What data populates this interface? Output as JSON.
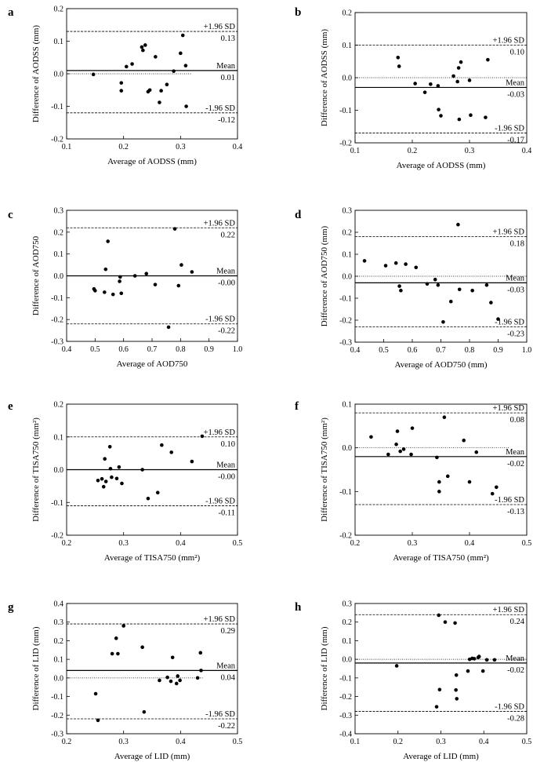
{
  "chart_data": [
    {
      "panel": "a",
      "type": "scatter",
      "xlabel": "Average of AODSS (mm)",
      "ylabel": "Difference of AODSS (mm)",
      "xlim": [
        0.1,
        0.4
      ],
      "ylim": [
        -0.2,
        0.2
      ],
      "xticks": [
        0.1,
        0.2,
        0.3,
        0.4
      ],
      "yticks": [
        -0.2,
        -0.1,
        0.0,
        0.1,
        0.2
      ],
      "xtick_labels": [
        "0.1",
        "0.2",
        "0.3",
        "0.4"
      ],
      "ytick_labels": [
        "-0.2",
        "-0.1",
        "0.0",
        "0.1",
        "0.2"
      ],
      "upper": {
        "value": 0.13,
        "label": "+1.96 SD",
        "value_label": "0.13"
      },
      "mean": {
        "value": 0.01,
        "label": "Mean",
        "value_label": "0.01"
      },
      "lower": {
        "value": -0.12,
        "label": "-1.96 SD",
        "value_label": "-0.12"
      },
      "zero_line_end": 0.32,
      "points": [
        [
          0.147,
          -0.002
        ],
        [
          0.196,
          -0.028
        ],
        [
          0.196,
          -0.052
        ],
        [
          0.205,
          0.022
        ],
        [
          0.215,
          0.03
        ],
        [
          0.232,
          0.082
        ],
        [
          0.234,
          0.072
        ],
        [
          0.238,
          0.088
        ],
        [
          0.243,
          -0.055
        ],
        [
          0.246,
          -0.05
        ],
        [
          0.256,
          0.052
        ],
        [
          0.263,
          -0.088
        ],
        [
          0.266,
          -0.052
        ],
        [
          0.276,
          -0.033
        ],
        [
          0.288,
          0.008
        ],
        [
          0.3,
          0.063
        ],
        [
          0.304,
          0.118
        ],
        [
          0.309,
          0.025
        ],
        [
          0.31,
          -0.1
        ]
      ]
    },
    {
      "panel": "b",
      "type": "scatter",
      "xlabel": "Average of AODSS (mm)",
      "ylabel": "Difference of AODSS (mm)",
      "xlim": [
        0.1,
        0.4
      ],
      "ylim": [
        -0.2,
        0.2
      ],
      "xticks": [
        0.1,
        0.2,
        0.3,
        0.4
      ],
      "yticks": [
        -0.2,
        -0.1,
        0.0,
        0.1,
        0.2
      ],
      "xtick_labels": [
        "0.1",
        "0.2",
        "0.3",
        "0.4"
      ],
      "ytick_labels": [
        "-0.2",
        "-0.1",
        "0.0",
        "0.1",
        "0.2"
      ],
      "upper": {
        "value": 0.1,
        "label": "+1.96 SD",
        "value_label": "0.10"
      },
      "mean": {
        "value": -0.03,
        "label": "Mean",
        "value_label": "-0.03"
      },
      "lower": {
        "value": -0.17,
        "label": "-1.96 SD",
        "value_label": "-0.17"
      },
      "zero_line_end": 0.4,
      "points": [
        [
          0.175,
          0.062
        ],
        [
          0.177,
          0.035
        ],
        [
          0.205,
          -0.018
        ],
        [
          0.222,
          -0.045
        ],
        [
          0.232,
          -0.02
        ],
        [
          0.245,
          -0.025
        ],
        [
          0.246,
          -0.098
        ],
        [
          0.25,
          -0.117
        ],
        [
          0.272,
          0.005
        ],
        [
          0.279,
          -0.012
        ],
        [
          0.281,
          0.03
        ],
        [
          0.282,
          -0.128
        ],
        [
          0.285,
          0.048
        ],
        [
          0.3,
          -0.008
        ],
        [
          0.302,
          -0.115
        ],
        [
          0.332,
          0.055
        ],
        [
          0.328,
          -0.122
        ]
      ]
    },
    {
      "panel": "c",
      "type": "scatter",
      "xlabel": "Average of AOD750",
      "ylabel": "Difference of AOD750",
      "xlim": [
        0.4,
        1.0
      ],
      "ylim": [
        -0.3,
        0.3
      ],
      "xticks": [
        0.4,
        0.5,
        0.6,
        0.7,
        0.8,
        0.9,
        1.0
      ],
      "yticks": [
        -0.3,
        -0.2,
        -0.1,
        0.0,
        0.1,
        0.2,
        0.3
      ],
      "xtick_labels": [
        "0.4",
        "0.5",
        "0.6",
        "0.7",
        "0.8",
        "0.9",
        "1.0"
      ],
      "ytick_labels": [
        "-0.3",
        "-0.2",
        "-0.1",
        "0.0",
        "0.1",
        "0.2",
        "0.3"
      ],
      "upper": {
        "value": 0.22,
        "label": "+1.96 SD",
        "value_label": "0.22"
      },
      "mean": {
        "value": -0.0,
        "label": "Mean",
        "value_label": "-0.00"
      },
      "lower": {
        "value": -0.22,
        "label": "-1.96 SD",
        "value_label": "-0.22"
      },
      "zero_line_end": 1.0,
      "points": [
        [
          0.496,
          -0.06
        ],
        [
          0.5,
          -0.068
        ],
        [
          0.533,
          -0.075
        ],
        [
          0.537,
          0.03
        ],
        [
          0.545,
          0.158
        ],
        [
          0.563,
          -0.085
        ],
        [
          0.586,
          -0.025
        ],
        [
          0.588,
          -0.005
        ],
        [
          0.592,
          -0.08
        ],
        [
          0.64,
          0.0
        ],
        [
          0.68,
          0.01
        ],
        [
          0.711,
          -0.04
        ],
        [
          0.758,
          -0.235
        ],
        [
          0.78,
          0.215
        ],
        [
          0.793,
          -0.045
        ],
        [
          0.803,
          0.05
        ],
        [
          0.84,
          0.018
        ]
      ]
    },
    {
      "panel": "d",
      "type": "scatter",
      "xlabel": "Average of AOD750 (mm)",
      "ylabel": "Difference of AOD750 (mm)",
      "xlim": [
        0.4,
        1.0
      ],
      "ylim": [
        -0.3,
        0.3
      ],
      "xticks": [
        0.4,
        0.5,
        0.6,
        0.7,
        0.8,
        0.9,
        1.0
      ],
      "yticks": [
        -0.3,
        -0.2,
        -0.1,
        0.0,
        0.1,
        0.2,
        0.3
      ],
      "xtick_labels": [
        "0.4",
        "0.5",
        "0.6",
        "0.7",
        "0.8",
        "0.9",
        "1.0"
      ],
      "ytick_labels": [
        "-0.3",
        "-0.2",
        "-0.1",
        "0.0",
        "0.1",
        "0.2",
        "0.3"
      ],
      "upper": {
        "value": 0.18,
        "label": "+1.96 SD",
        "value_label": "0.18"
      },
      "mean": {
        "value": -0.03,
        "label": "Mean",
        "value_label": "-0.03"
      },
      "lower": {
        "value": -0.23,
        "label": "-1.96 SD",
        "value_label": "-0.23"
      },
      "zero_line_end": 1.0,
      "points": [
        [
          0.433,
          0.07
        ],
        [
          0.507,
          0.048
        ],
        [
          0.543,
          0.06
        ],
        [
          0.555,
          -0.045
        ],
        [
          0.56,
          -0.065
        ],
        [
          0.577,
          0.055
        ],
        [
          0.613,
          0.04
        ],
        [
          0.652,
          -0.035
        ],
        [
          0.68,
          -0.015
        ],
        [
          0.69,
          -0.04
        ],
        [
          0.708,
          -0.208
        ],
        [
          0.735,
          -0.115
        ],
        [
          0.76,
          0.235
        ],
        [
          0.765,
          -0.06
        ],
        [
          0.81,
          -0.065
        ],
        [
          0.86,
          -0.04
        ],
        [
          0.875,
          -0.12
        ],
        [
          0.9,
          -0.195
        ]
      ]
    },
    {
      "panel": "e",
      "type": "scatter",
      "xlabel": "Average of TISA750 (mm²)",
      "ylabel": "Difference of TISA750 (mm²)",
      "xlim": [
        0.2,
        0.5
      ],
      "ylim": [
        -0.2,
        0.2
      ],
      "xticks": [
        0.2,
        0.3,
        0.4,
        0.5
      ],
      "yticks": [
        -0.2,
        -0.1,
        0.0,
        0.1,
        0.2
      ],
      "xtick_labels": [
        "0.2",
        "0.3",
        "0.4",
        "0.5"
      ],
      "ytick_labels": [
        "-0.2",
        "-0.1",
        "0.0",
        "0.1",
        "0.2"
      ],
      "upper": {
        "value": 0.1,
        "label": "+1.96 SD",
        "value_label": "0.10"
      },
      "mean": {
        "value": -0.0,
        "label": "Mean",
        "value_label": "-0.00"
      },
      "lower": {
        "value": -0.11,
        "label": "-1.96 SD",
        "value_label": "-0.11"
      },
      "zero_line_end": 0.45,
      "points": [
        [
          0.255,
          -0.033
        ],
        [
          0.262,
          -0.028
        ],
        [
          0.265,
          -0.052
        ],
        [
          0.267,
          0.033
        ],
        [
          0.269,
          -0.036
        ],
        [
          0.276,
          0.07
        ],
        [
          0.277,
          0.003
        ],
        [
          0.279,
          -0.023
        ],
        [
          0.288,
          -0.027
        ],
        [
          0.292,
          0.008
        ],
        [
          0.297,
          -0.042
        ],
        [
          0.333,
          0.0
        ],
        [
          0.343,
          -0.088
        ],
        [
          0.36,
          -0.07
        ],
        [
          0.367,
          0.075
        ],
        [
          0.384,
          0.053
        ],
        [
          0.42,
          0.025
        ],
        [
          0.438,
          0.102
        ]
      ]
    },
    {
      "panel": "f",
      "type": "scatter",
      "xlabel": "Average of TISA750 (mm²)",
      "ylabel": "Difference of TISA750 (mm²)",
      "xlim": [
        0.2,
        0.5
      ],
      "ylim": [
        -0.2,
        0.1
      ],
      "xticks": [
        0.2,
        0.3,
        0.4,
        0.5
      ],
      "yticks": [
        -0.2,
        -0.1,
        0.0,
        0.1
      ],
      "xtick_labels": [
        "0.2",
        "0.3",
        "0.4",
        "0.5"
      ],
      "ytick_labels": [
        "-0.2",
        "-0.1",
        "0.0",
        "0.1"
      ],
      "upper": {
        "value": 0.08,
        "label": "+1.96 SD",
        "value_label": "0.08"
      },
      "mean": {
        "value": -0.02,
        "label": "Mean",
        "value_label": "-0.02"
      },
      "lower": {
        "value": -0.13,
        "label": "-1.96 SD",
        "value_label": "-0.13"
      },
      "zero_line_end": 0.47,
      "points": [
        [
          0.228,
          0.025
        ],
        [
          0.258,
          -0.015
        ],
        [
          0.272,
          0.008
        ],
        [
          0.274,
          0.038
        ],
        [
          0.279,
          -0.008
        ],
        [
          0.285,
          -0.003
        ],
        [
          0.3,
          0.045
        ],
        [
          0.298,
          -0.015
        ],
        [
          0.343,
          -0.022
        ],
        [
          0.347,
          -0.1
        ],
        [
          0.347,
          -0.078
        ],
        [
          0.356,
          0.07
        ],
        [
          0.362,
          -0.065
        ],
        [
          0.39,
          0.017
        ],
        [
          0.4,
          -0.078
        ],
        [
          0.412,
          -0.01
        ],
        [
          0.44,
          -0.105
        ],
        [
          0.447,
          -0.09
        ]
      ]
    },
    {
      "panel": "g",
      "type": "scatter",
      "xlabel": "Average of LID (mm)",
      "ylabel": "Difference of LID (mm)",
      "xlim": [
        0.2,
        0.5
      ],
      "ylim": [
        -0.3,
        0.4
      ],
      "xticks": [
        0.2,
        0.3,
        0.4,
        0.5
      ],
      "yticks": [
        -0.3,
        -0.2,
        -0.1,
        0.0,
        0.1,
        0.2,
        0.3,
        0.4
      ],
      "xtick_labels": [
        "0.2",
        "0.3",
        "0.4",
        "0.5"
      ],
      "ytick_labels": [
        "-0.3",
        "-0.2",
        "-0.1",
        "0.0",
        "0.1",
        "0.2",
        "0.3",
        "0.4"
      ],
      "upper": {
        "value": 0.29,
        "label": "+1.96 SD",
        "value_label": "0.29"
      },
      "mean": {
        "value": 0.04,
        "label": "Mean",
        "value_label": "0.04"
      },
      "lower": {
        "value": -0.22,
        "label": "-1.96 SD",
        "value_label": "-0.22"
      },
      "zero_line_end": 0.44,
      "points": [
        [
          0.251,
          -0.085
        ],
        [
          0.255,
          -0.228
        ],
        [
          0.28,
          0.13
        ],
        [
          0.287,
          0.213
        ],
        [
          0.29,
          0.13
        ],
        [
          0.3,
          0.28
        ],
        [
          0.333,
          0.165
        ],
        [
          0.336,
          -0.183
        ],
        [
          0.363,
          -0.013
        ],
        [
          0.377,
          0.003
        ],
        [
          0.383,
          -0.018
        ],
        [
          0.386,
          0.11
        ],
        [
          0.393,
          -0.03
        ],
        [
          0.395,
          0.01
        ],
        [
          0.399,
          -0.013
        ],
        [
          0.43,
          0.0
        ],
        [
          0.435,
          0.135
        ],
        [
          0.436,
          0.04
        ]
      ]
    },
    {
      "panel": "h",
      "type": "scatter",
      "xlabel": "Average of LID (mm)",
      "ylabel": "Difference of LID (mm)",
      "xlim": [
        0.1,
        0.5
      ],
      "ylim": [
        -0.4,
        0.3
      ],
      "xticks": [
        0.1,
        0.2,
        0.3,
        0.4,
        0.5
      ],
      "yticks": [
        -0.4,
        -0.3,
        -0.2,
        -0.1,
        0.0,
        0.1,
        0.2,
        0.3
      ],
      "xtick_labels": [
        "0.1",
        "0.2",
        "0.3",
        "0.4",
        "0.5"
      ],
      "ytick_labels": [
        "-0.4",
        "-0.3",
        "-0.2",
        "-0.1",
        "0.0",
        "0.1",
        "0.2",
        "0.3"
      ],
      "upper": {
        "value": 0.24,
        "label": "+1.96 SD",
        "value_label": "0.24"
      },
      "mean": {
        "value": -0.02,
        "label": "Mean",
        "value_label": "-0.02"
      },
      "lower": {
        "value": -0.28,
        "label": "-1.96 SD",
        "value_label": "-0.28"
      },
      "zero_line_end": 0.5,
      "points": [
        [
          0.197,
          -0.035
        ],
        [
          0.29,
          -0.255
        ],
        [
          0.295,
          0.237
        ],
        [
          0.297,
          -0.163
        ],
        [
          0.31,
          0.2
        ],
        [
          0.333,
          0.195
        ],
        [
          0.336,
          -0.085
        ],
        [
          0.335,
          -0.165
        ],
        [
          0.337,
          -0.212
        ],
        [
          0.363,
          -0.063
        ],
        [
          0.367,
          0.0
        ],
        [
          0.373,
          0.005
        ],
        [
          0.378,
          0.003
        ],
        [
          0.387,
          0.01
        ],
        [
          0.389,
          0.015
        ],
        [
          0.398,
          -0.063
        ],
        [
          0.407,
          -0.003
        ],
        [
          0.425,
          -0.003
        ]
      ]
    }
  ]
}
